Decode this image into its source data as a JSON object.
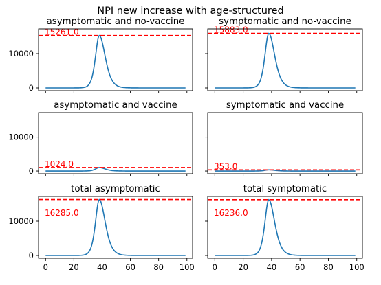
{
  "figure": {
    "suptitle": "NPI new increase with age-structured"
  },
  "colors": {
    "line": "#1f77b4",
    "reference": "#ff0000",
    "axis": "#000000"
  },
  "chart_data": [
    {
      "type": "line",
      "title": "asymptomatic and no-vaccine",
      "peak_x": 38,
      "peak_y": 15261.0,
      "reference_value": 15261.0,
      "reference_label": "15261.0",
      "xlim": [
        -5,
        104
      ],
      "ylim": [
        -800,
        17200
      ],
      "xticks": [
        0,
        20,
        40,
        60,
        80,
        100
      ],
      "xtick_labels_visible": false,
      "yticks": [
        0,
        10000
      ],
      "ytick_labels": [
        "0",
        "10000"
      ],
      "ytick_labels_visible": true
    },
    {
      "type": "line",
      "title": "symptomatic and no-vaccine",
      "peak_x": 38,
      "peak_y": 15883.0,
      "reference_value": 15883.0,
      "reference_label": "15883.0",
      "xlim": [
        -5,
        104
      ],
      "ylim": [
        -800,
        17200
      ],
      "xticks": [
        0,
        20,
        40,
        60,
        80,
        100
      ],
      "xtick_labels_visible": false,
      "yticks": [
        0,
        10000
      ],
      "ytick_labels": [
        "0",
        "10000"
      ],
      "ytick_labels_visible": false
    },
    {
      "type": "line",
      "title": "asymptomatic and vaccine",
      "peak_x": 38,
      "peak_y": 1024.0,
      "reference_value": 1024.0,
      "reference_label": "1024.0",
      "xlim": [
        -5,
        104
      ],
      "ylim": [
        -800,
        17200
      ],
      "xticks": [
        0,
        20,
        40,
        60,
        80,
        100
      ],
      "xtick_labels_visible": false,
      "yticks": [
        0,
        10000
      ],
      "ytick_labels": [
        "0",
        "10000"
      ],
      "ytick_labels_visible": true
    },
    {
      "type": "line",
      "title": "symptomatic and vaccine",
      "peak_x": 38,
      "peak_y": 353.0,
      "reference_value": 353.0,
      "reference_label": "353.0",
      "xlim": [
        -5,
        104
      ],
      "ylim": [
        -800,
        17200
      ],
      "xticks": [
        0,
        20,
        40,
        60,
        80,
        100
      ],
      "xtick_labels_visible": false,
      "yticks": [
        0,
        10000
      ],
      "ytick_labels": [
        "0",
        "10000"
      ],
      "ytick_labels_visible": false
    },
    {
      "type": "line",
      "title": "total asymptomatic",
      "peak_x": 38,
      "peak_y": 16285.0,
      "reference_value": 16285.0,
      "reference_label": "16285.0",
      "xlim": [
        -5,
        104
      ],
      "ylim": [
        -800,
        17200
      ],
      "xticks": [
        0,
        20,
        40,
        60,
        80,
        100
      ],
      "xtick_labels": [
        "0",
        "20",
        "40",
        "60",
        "80",
        "100"
      ],
      "xtick_labels_visible": true,
      "yticks": [
        0,
        10000
      ],
      "ytick_labels": [
        "0",
        "10000"
      ],
      "ytick_labels_visible": true
    },
    {
      "type": "line",
      "title": "total symptomatic",
      "peak_x": 38,
      "peak_y": 16236.0,
      "reference_value": 16236.0,
      "reference_label": "16236.0",
      "xlim": [
        -5,
        104
      ],
      "ylim": [
        -800,
        17200
      ],
      "xticks": [
        0,
        20,
        40,
        60,
        80,
        100
      ],
      "xtick_labels": [
        "0",
        "20",
        "40",
        "60",
        "80",
        "100"
      ],
      "xtick_labels_visible": true,
      "yticks": [
        0,
        10000
      ],
      "ytick_labels": [
        "0",
        "10000"
      ],
      "ytick_labels_visible": false
    }
  ]
}
